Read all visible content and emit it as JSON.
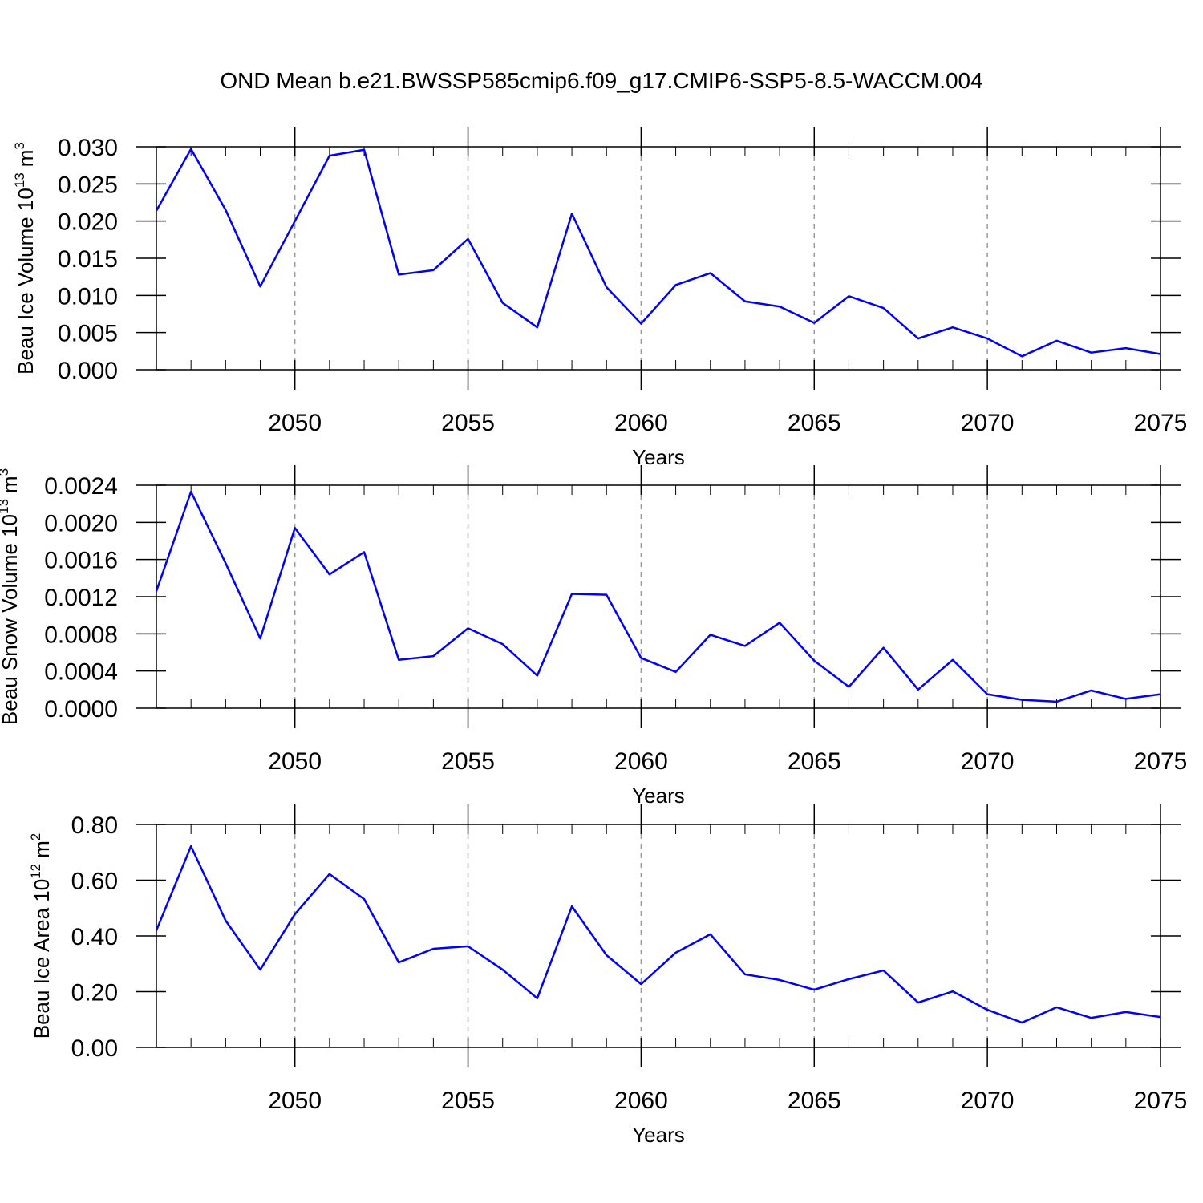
{
  "title": "OND Mean b.e21.BWSSP585cmip6.f09_g17.CMIP6-SSP5-8.5-WACCM.004",
  "chart_data": [
    {
      "type": "line",
      "y_label": [
        "Beau Ice Volume 10",
        "13",
        "m",
        "3"
      ],
      "x_label": "Years",
      "x": [
        2046,
        2047,
        2048,
        2049,
        2050,
        2051,
        2052,
        2053,
        2054,
        2055,
        2056,
        2057,
        2058,
        2059,
        2060,
        2061,
        2062,
        2063,
        2064,
        2065,
        2066,
        2067,
        2068,
        2069,
        2070,
        2071,
        2072,
        2073,
        2074,
        2075
      ],
      "color": "#0000ff",
      "values": [
        0.0214,
        0.0297,
        0.0215,
        0.0112,
        0.02,
        0.0288,
        0.0296,
        0.0128,
        0.0134,
        0.0176,
        0.009,
        0.0057,
        0.021,
        0.0111,
        0.0062,
        0.0114,
        0.013,
        0.0092,
        0.0085,
        0.0063,
        0.0099,
        0.0083,
        0.0042,
        0.0057,
        0.0042,
        0.0018,
        0.0039,
        0.0023,
        0.0029,
        0.0021
      ],
      "xlim": [
        2046,
        2075
      ],
      "xticks": [
        2050,
        2055,
        2060,
        2065,
        2070,
        2075
      ],
      "ylim": [
        0,
        0.03
      ],
      "yticks": [
        {
          "value": 0,
          "label": "0.000"
        },
        {
          "value": 0.005,
          "label": "0.005"
        },
        {
          "value": 0.01,
          "label": "0.010"
        },
        {
          "value": 0.015,
          "label": "0.015"
        },
        {
          "value": 0.02,
          "label": "0.020"
        },
        {
          "value": 0.025,
          "label": "0.025"
        },
        {
          "value": 0.03,
          "label": "0.030"
        }
      ],
      "xgrid": true
    },
    {
      "type": "line",
      "y_label": [
        "Beau Snow Volume 10",
        "13",
        "m",
        "3"
      ],
      "x_label": "Years",
      "x": [
        2046,
        2047,
        2048,
        2049,
        2050,
        2051,
        2052,
        2053,
        2054,
        2055,
        2056,
        2057,
        2058,
        2059,
        2060,
        2061,
        2062,
        2063,
        2064,
        2065,
        2066,
        2067,
        2068,
        2069,
        2070,
        2071,
        2072,
        2073,
        2074,
        2075
      ],
      "color": "#0000ff",
      "values": [
        0.00126,
        0.00233,
        0.00156,
        0.00075,
        0.00194,
        0.00144,
        0.00168,
        0.00052,
        0.00056,
        0.00086,
        0.00069,
        0.00035,
        0.00123,
        0.00122,
        0.00054,
        0.00039,
        0.00079,
        0.00067,
        0.00092,
        0.00051,
        0.00023,
        0.00065,
        0.0002,
        0.00052,
        0.00015,
        9e-05,
        7e-05,
        0.00019,
        0.0001,
        0.00015
      ],
      "xlim": [
        2046,
        2075
      ],
      "xticks": [
        2050,
        2055,
        2060,
        2065,
        2070,
        2075
      ],
      "ylim": [
        0,
        0.0024
      ],
      "yticks": [
        {
          "value": 0,
          "label": "0.0000"
        },
        {
          "value": 0.0004,
          "label": "0.0004"
        },
        {
          "value": 0.0008,
          "label": "0.0008"
        },
        {
          "value": 0.0012,
          "label": "0.0012"
        },
        {
          "value": 0.0016,
          "label": "0.0016"
        },
        {
          "value": 0.002,
          "label": "0.0020"
        },
        {
          "value": 0.0024,
          "label": "0.0024"
        }
      ],
      "xgrid": true
    },
    {
      "type": "line",
      "y_label": [
        "Beau Ice Area 10",
        "12",
        "m",
        "2"
      ],
      "x_label": "Years",
      "x": [
        2046,
        2047,
        2048,
        2049,
        2050,
        2051,
        2052,
        2053,
        2054,
        2055,
        2056,
        2057,
        2058,
        2059,
        2060,
        2061,
        2062,
        2063,
        2064,
        2065,
        2066,
        2067,
        2068,
        2069,
        2070,
        2071,
        2072,
        2073,
        2074,
        2075
      ],
      "color": "#0000ff",
      "values": [
        0.42,
        0.722,
        0.455,
        0.279,
        0.478,
        0.622,
        0.532,
        0.305,
        0.354,
        0.363,
        0.279,
        0.176,
        0.506,
        0.331,
        0.227,
        0.34,
        0.406,
        0.262,
        0.242,
        0.207,
        0.245,
        0.276,
        0.161,
        0.201,
        0.135,
        0.089,
        0.144,
        0.106,
        0.127,
        0.109
      ],
      "xlim": [
        2046,
        2075
      ],
      "xticks": [
        2050,
        2055,
        2060,
        2065,
        2070,
        2075
      ],
      "ylim": [
        0,
        0.8
      ],
      "yticks": [
        {
          "value": 0,
          "label": "0.00"
        },
        {
          "value": 0.2,
          "label": "0.20"
        },
        {
          "value": 0.4,
          "label": "0.40"
        },
        {
          "value": 0.6,
          "label": "0.60"
        },
        {
          "value": 0.8,
          "label": "0.80"
        }
      ],
      "xgrid": true
    }
  ]
}
